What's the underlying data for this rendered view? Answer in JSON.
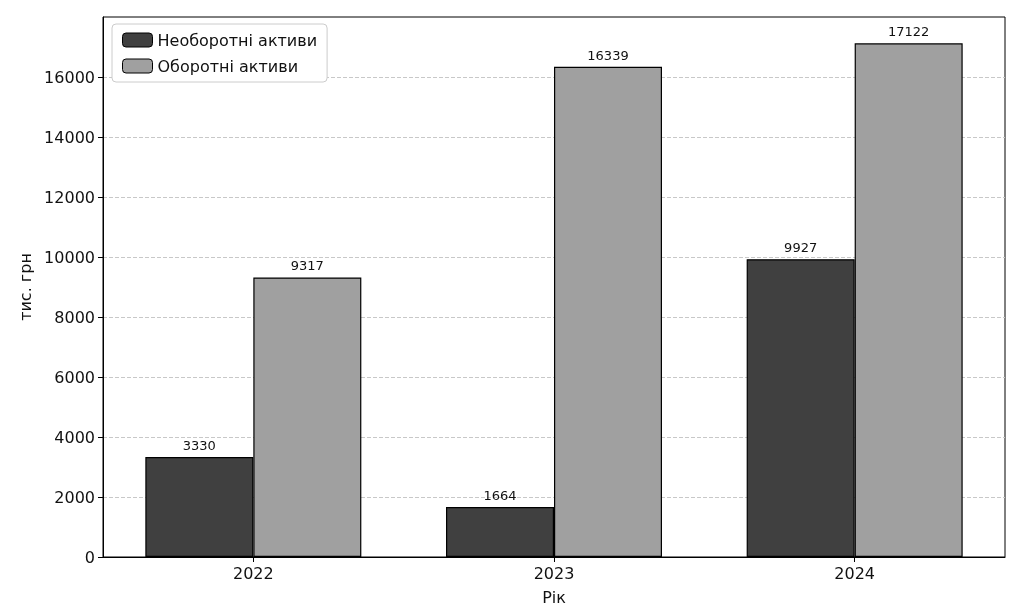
{
  "chart_data": {
    "type": "bar",
    "xlabel": "Рік",
    "ylabel": "тис. грн",
    "categories": [
      "2022",
      "2023",
      "2024"
    ],
    "series": [
      {
        "name": "Необоротні активи",
        "color": "#404040",
        "values": [
          3330,
          1664,
          9927
        ]
      },
      {
        "name": "Оборотні активи",
        "color": "#a0a0a0",
        "values": [
          9317,
          16339,
          17122
        ]
      }
    ],
    "ylim": [
      0,
      18000
    ],
    "yticks": [
      0,
      2000,
      4000,
      6000,
      8000,
      10000,
      12000,
      14000,
      16000
    ],
    "grid": "y",
    "legend": "top left",
    "data_labels": true
  }
}
